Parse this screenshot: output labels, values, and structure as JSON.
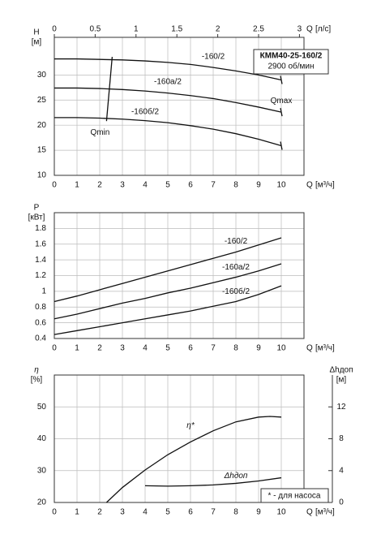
{
  "chart_data": [
    {
      "type": "line",
      "title": "КММ40-25-160/2",
      "subtitle": "2900 об/мин",
      "ylabel": "H",
      "yunit": "[м]",
      "xlabel": "Q",
      "xunit": "[м³/ч]",
      "x2label": "Q",
      "x2unit": "[л/с]",
      "xlim": [
        0,
        11
      ],
      "xticks": [
        0,
        1,
        2,
        3,
        4,
        5,
        6,
        7,
        8,
        9,
        10
      ],
      "x2lim": [
        0,
        3.0556
      ],
      "x2ticks": [
        0,
        0.5,
        1,
        1.5,
        2,
        2.5,
        3
      ],
      "ylim": [
        10,
        37.5
      ],
      "yticks": [
        10,
        15,
        20,
        25,
        30
      ],
      "grid": true,
      "qmax_label": "Qmax",
      "series": [
        {
          "name": "-160/2",
          "color": "#111",
          "x": [
            0,
            1,
            2,
            3,
            4,
            5,
            6,
            7,
            8,
            9,
            10
          ],
          "values": [
            33.2,
            33.2,
            33.1,
            33.0,
            32.8,
            32.5,
            32.1,
            31.5,
            30.8,
            30.0,
            29.0
          ]
        },
        {
          "name": "-160а/2",
          "color": "#111",
          "x": [
            0,
            1,
            2,
            3,
            4,
            5,
            6,
            7,
            8,
            9,
            10
          ],
          "values": [
            27.4,
            27.4,
            27.3,
            27.1,
            26.8,
            26.4,
            25.9,
            25.3,
            24.5,
            23.6,
            22.6
          ]
        },
        {
          "name": "-160б/2",
          "color": "#111",
          "x": [
            0,
            1,
            2,
            3,
            4,
            5,
            6,
            7,
            8,
            9,
            10
          ],
          "values": [
            21.5,
            21.5,
            21.4,
            21.2,
            20.9,
            20.5,
            19.9,
            19.2,
            18.3,
            17.2,
            15.9
          ]
        },
        {
          "name": "Qmin",
          "color": "#111",
          "x": [
            2.55,
            2.3
          ],
          "values": [
            33.6,
            20.8
          ]
        }
      ]
    },
    {
      "type": "line",
      "ylabel": "P",
      "yunit": "[кВт]",
      "xlabel": "Q",
      "xunit": "[м³/ч]",
      "xlim": [
        0,
        11
      ],
      "xticks": [
        0,
        1,
        2,
        3,
        4,
        5,
        6,
        7,
        8,
        9,
        10
      ],
      "ylim": [
        0.4,
        2.0
      ],
      "yticks": [
        0.4,
        0.6,
        0.8,
        1,
        1.2,
        1.4,
        1.6,
        1.8
      ],
      "grid": true,
      "series": [
        {
          "name": "-160/2",
          "color": "#111",
          "x": [
            0,
            1,
            2,
            3,
            4,
            5,
            6,
            7,
            8,
            9,
            10
          ],
          "values": [
            0.87,
            0.94,
            1.02,
            1.1,
            1.18,
            1.26,
            1.34,
            1.42,
            1.5,
            1.59,
            1.68
          ]
        },
        {
          "name": "-160а/2",
          "color": "#111",
          "x": [
            0,
            1,
            2,
            3,
            4,
            5,
            6,
            7,
            8,
            9,
            10
          ],
          "values": [
            0.65,
            0.71,
            0.78,
            0.85,
            0.91,
            0.98,
            1.04,
            1.11,
            1.18,
            1.26,
            1.35
          ]
        },
        {
          "name": "-160б/2",
          "color": "#111",
          "x": [
            0,
            1,
            2,
            3,
            4,
            5,
            6,
            7,
            8,
            9,
            10
          ],
          "values": [
            0.45,
            0.5,
            0.55,
            0.6,
            0.65,
            0.7,
            0.75,
            0.81,
            0.87,
            0.96,
            1.07
          ]
        }
      ]
    },
    {
      "type": "line",
      "ylabel": "η",
      "yunit": "[%]",
      "y2label": "Δhдоп",
      "y2unit": "[м]",
      "xlabel": "Q",
      "xunit": "[м³/ч]",
      "note": "* - для насоса",
      "xlim": [
        0,
        11
      ],
      "xticks": [
        0,
        1,
        2,
        3,
        4,
        5,
        6,
        7,
        8,
        9,
        10
      ],
      "ylim": [
        20,
        60
      ],
      "yticks": [
        20,
        30,
        40,
        50
      ],
      "y2lim": [
        0,
        16
      ],
      "y2ticks": [
        0,
        4,
        8,
        12
      ],
      "grid": true,
      "series": [
        {
          "name": "η*",
          "color": "#111",
          "x": [
            2.3,
            3,
            4,
            5,
            6,
            7,
            8,
            9,
            9.5,
            10
          ],
          "values": [
            20,
            24.7,
            30.2,
            35,
            39,
            42.5,
            45.3,
            46.8,
            47,
            46.8
          ]
        },
        {
          "name": "Δhдоп",
          "color": "#111",
          "axis": "y2",
          "x": [
            4,
            5,
            6,
            7,
            8,
            9,
            10
          ],
          "values": [
            2.1,
            2.05,
            2.1,
            2.2,
            2.4,
            2.7,
            3.1
          ]
        }
      ]
    }
  ]
}
